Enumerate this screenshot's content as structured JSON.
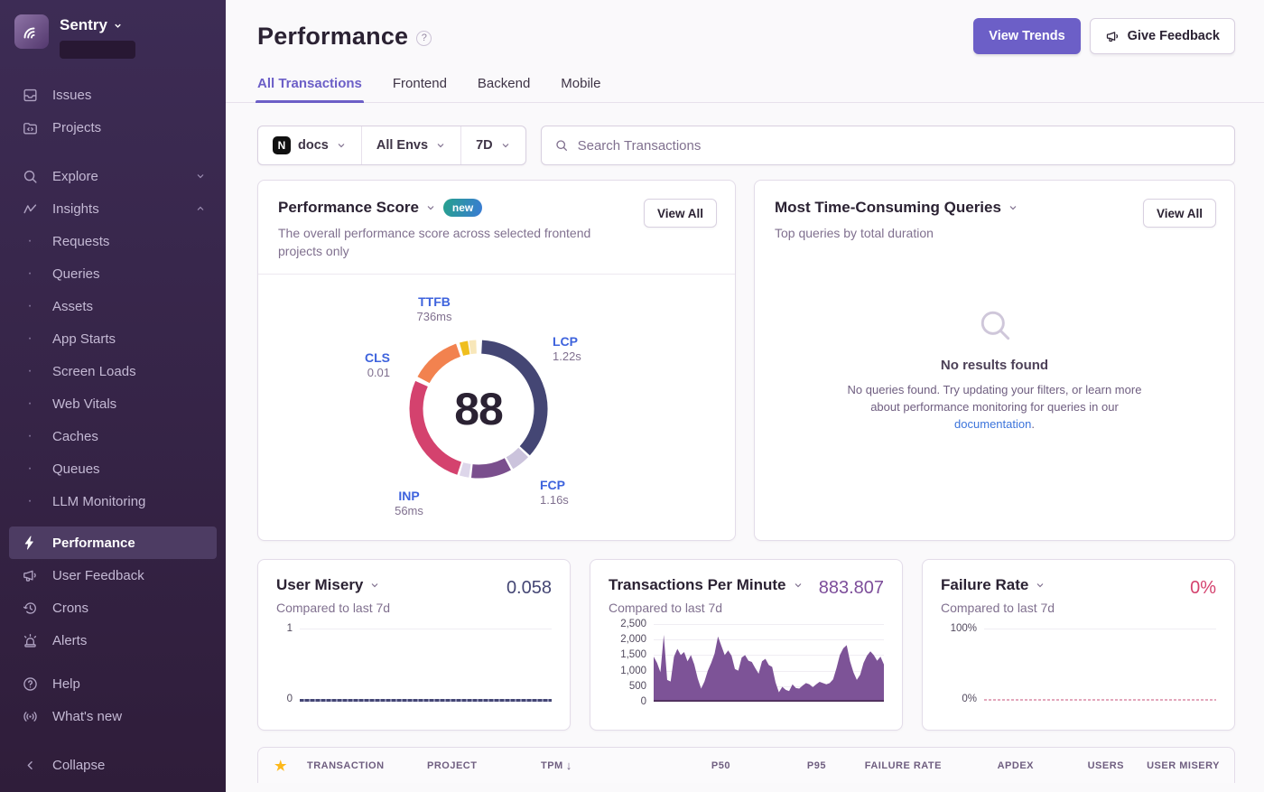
{
  "colors": {
    "accent_purple": "#6C5FC7",
    "link_blue": "#3C74DB",
    "sidebar_bg": "#342044",
    "value_navy": "#444674",
    "value_purple": "#7D4E9A",
    "value_pink": "#D4426E",
    "star_gold": "#FDB81B"
  },
  "sidebar": {
    "brand": "Sentry",
    "items": [
      {
        "label": "Issues"
      },
      {
        "label": "Projects"
      },
      {
        "label": "Explore"
      },
      {
        "label": "Insights"
      },
      {
        "label": "Requests"
      },
      {
        "label": "Queries"
      },
      {
        "label": "Assets"
      },
      {
        "label": "App Starts"
      },
      {
        "label": "Screen Loads"
      },
      {
        "label": "Web Vitals"
      },
      {
        "label": "Caches"
      },
      {
        "label": "Queues"
      },
      {
        "label": "LLM Monitoring"
      },
      {
        "label": "Performance",
        "active": true
      },
      {
        "label": "User Feedback"
      },
      {
        "label": "Crons"
      },
      {
        "label": "Alerts"
      },
      {
        "label": "Help"
      },
      {
        "label": "What's new"
      },
      {
        "label": "Collapse"
      }
    ]
  },
  "header": {
    "title": "Performance",
    "view_trends_label": "View Trends",
    "give_feedback_label": "Give Feedback"
  },
  "tabs": [
    {
      "label": "All Transactions",
      "active": true
    },
    {
      "label": "Frontend",
      "active": false
    },
    {
      "label": "Backend",
      "active": false
    },
    {
      "label": "Mobile",
      "active": false
    }
  ],
  "filters": {
    "project_label": "docs",
    "project_badge": "N",
    "env_label": "All Envs",
    "date_label": "7D",
    "search_placeholder": "Search Transactions"
  },
  "widgets": {
    "performance_score": {
      "title": "Performance Score",
      "badge": "new",
      "description": "The overall performance score across selected frontend projects only",
      "view_all_label": "View All",
      "score": "88",
      "metrics": {
        "ttfb": {
          "name": "TTFB",
          "value": "736ms"
        },
        "lcp": {
          "name": "LCP",
          "value": "1.22s"
        },
        "cls": {
          "name": "CLS",
          "value": "0.01"
        },
        "inp": {
          "name": "INP",
          "value": "56ms"
        },
        "fcp": {
          "name": "FCP",
          "value": "1.16s"
        }
      },
      "donut_segments": [
        {
          "metric": "lcp",
          "color": "#444674",
          "start": 3,
          "end": 132
        },
        {
          "metric": "lcp-remainder",
          "color": "#CBC3DC",
          "start": 134,
          "end": 150
        },
        {
          "metric": "fcp",
          "color": "#7A4F8D",
          "start": 152,
          "end": 186
        },
        {
          "metric": "fcp-remainder",
          "color": "#DDD6EA",
          "start": 188,
          "end": 196
        },
        {
          "metric": "inp",
          "color": "#D4426E",
          "start": 198,
          "end": 294
        },
        {
          "metric": "cls",
          "color": "#F2824F",
          "start": 298,
          "end": 341
        },
        {
          "metric": "ttfb",
          "color": "#EFBE1D",
          "start": 344,
          "end": 351
        },
        {
          "metric": "ttfb-remainder",
          "color": "#F8E7B9",
          "start": 352,
          "end": 358
        }
      ]
    },
    "queries": {
      "title": "Most Time-Consuming Queries",
      "subtitle": "Top queries by total duration",
      "view_all_label": "View All",
      "empty_title": "No results found",
      "empty_message_1": "No queries found. Try updating your filters, or learn more about performance monitoring for queries in our ",
      "empty_link": "documentation",
      "empty_message_2": "."
    },
    "user_misery": {
      "title": "User Misery",
      "subtitle": "Compared to last 7d",
      "value": "0.058",
      "chart": {
        "type": "line",
        "ylim": [
          0,
          1
        ],
        "yticks": [
          "1",
          "0"
        ],
        "summary": "flat line at ~0.058 near 0"
      }
    },
    "tpm": {
      "title": "Transactions Per Minute",
      "subtitle": "Compared to last 7d",
      "value": "883.807",
      "chart": {
        "type": "area",
        "ylim": [
          0,
          2500
        ],
        "yticks": [
          "2,500",
          "2,000",
          "1,500",
          "1,000",
          "500",
          "0"
        ],
        "fill_color": "#7D5397",
        "values": [
          1450,
          1250,
          950,
          2150,
          700,
          650,
          1450,
          1700,
          1500,
          1600,
          1300,
          1500,
          1200,
          750,
          420,
          650,
          1000,
          1250,
          1550,
          2100,
          1800,
          1500,
          1650,
          1480,
          1050,
          1000,
          1420,
          1500,
          1320,
          1280,
          1080,
          900,
          1300,
          1380,
          1180,
          1120,
          620,
          300,
          480,
          380,
          340,
          560,
          440,
          420,
          520,
          600,
          560,
          470,
          560,
          640,
          600,
          560,
          600,
          720,
          1080,
          1500,
          1720,
          1820,
          1300,
          950,
          700,
          870,
          1250,
          1480,
          1620,
          1500,
          1320,
          1450,
          1200
        ]
      }
    },
    "failure_rate": {
      "title": "Failure Rate",
      "subtitle": "Compared to last 7d",
      "value": "0%",
      "chart": {
        "type": "line",
        "ylim": [
          0,
          100
        ],
        "yticks": [
          "100%",
          "0%"
        ],
        "summary": "flat line at 0%"
      }
    }
  },
  "table": {
    "columns": [
      "TRANSACTION",
      "PROJECT",
      "TPM",
      "P50",
      "P95",
      "FAILURE RATE",
      "APDEX",
      "USERS",
      "USER MISERY"
    ],
    "sort_column": "TPM",
    "sort_direction": "desc"
  }
}
